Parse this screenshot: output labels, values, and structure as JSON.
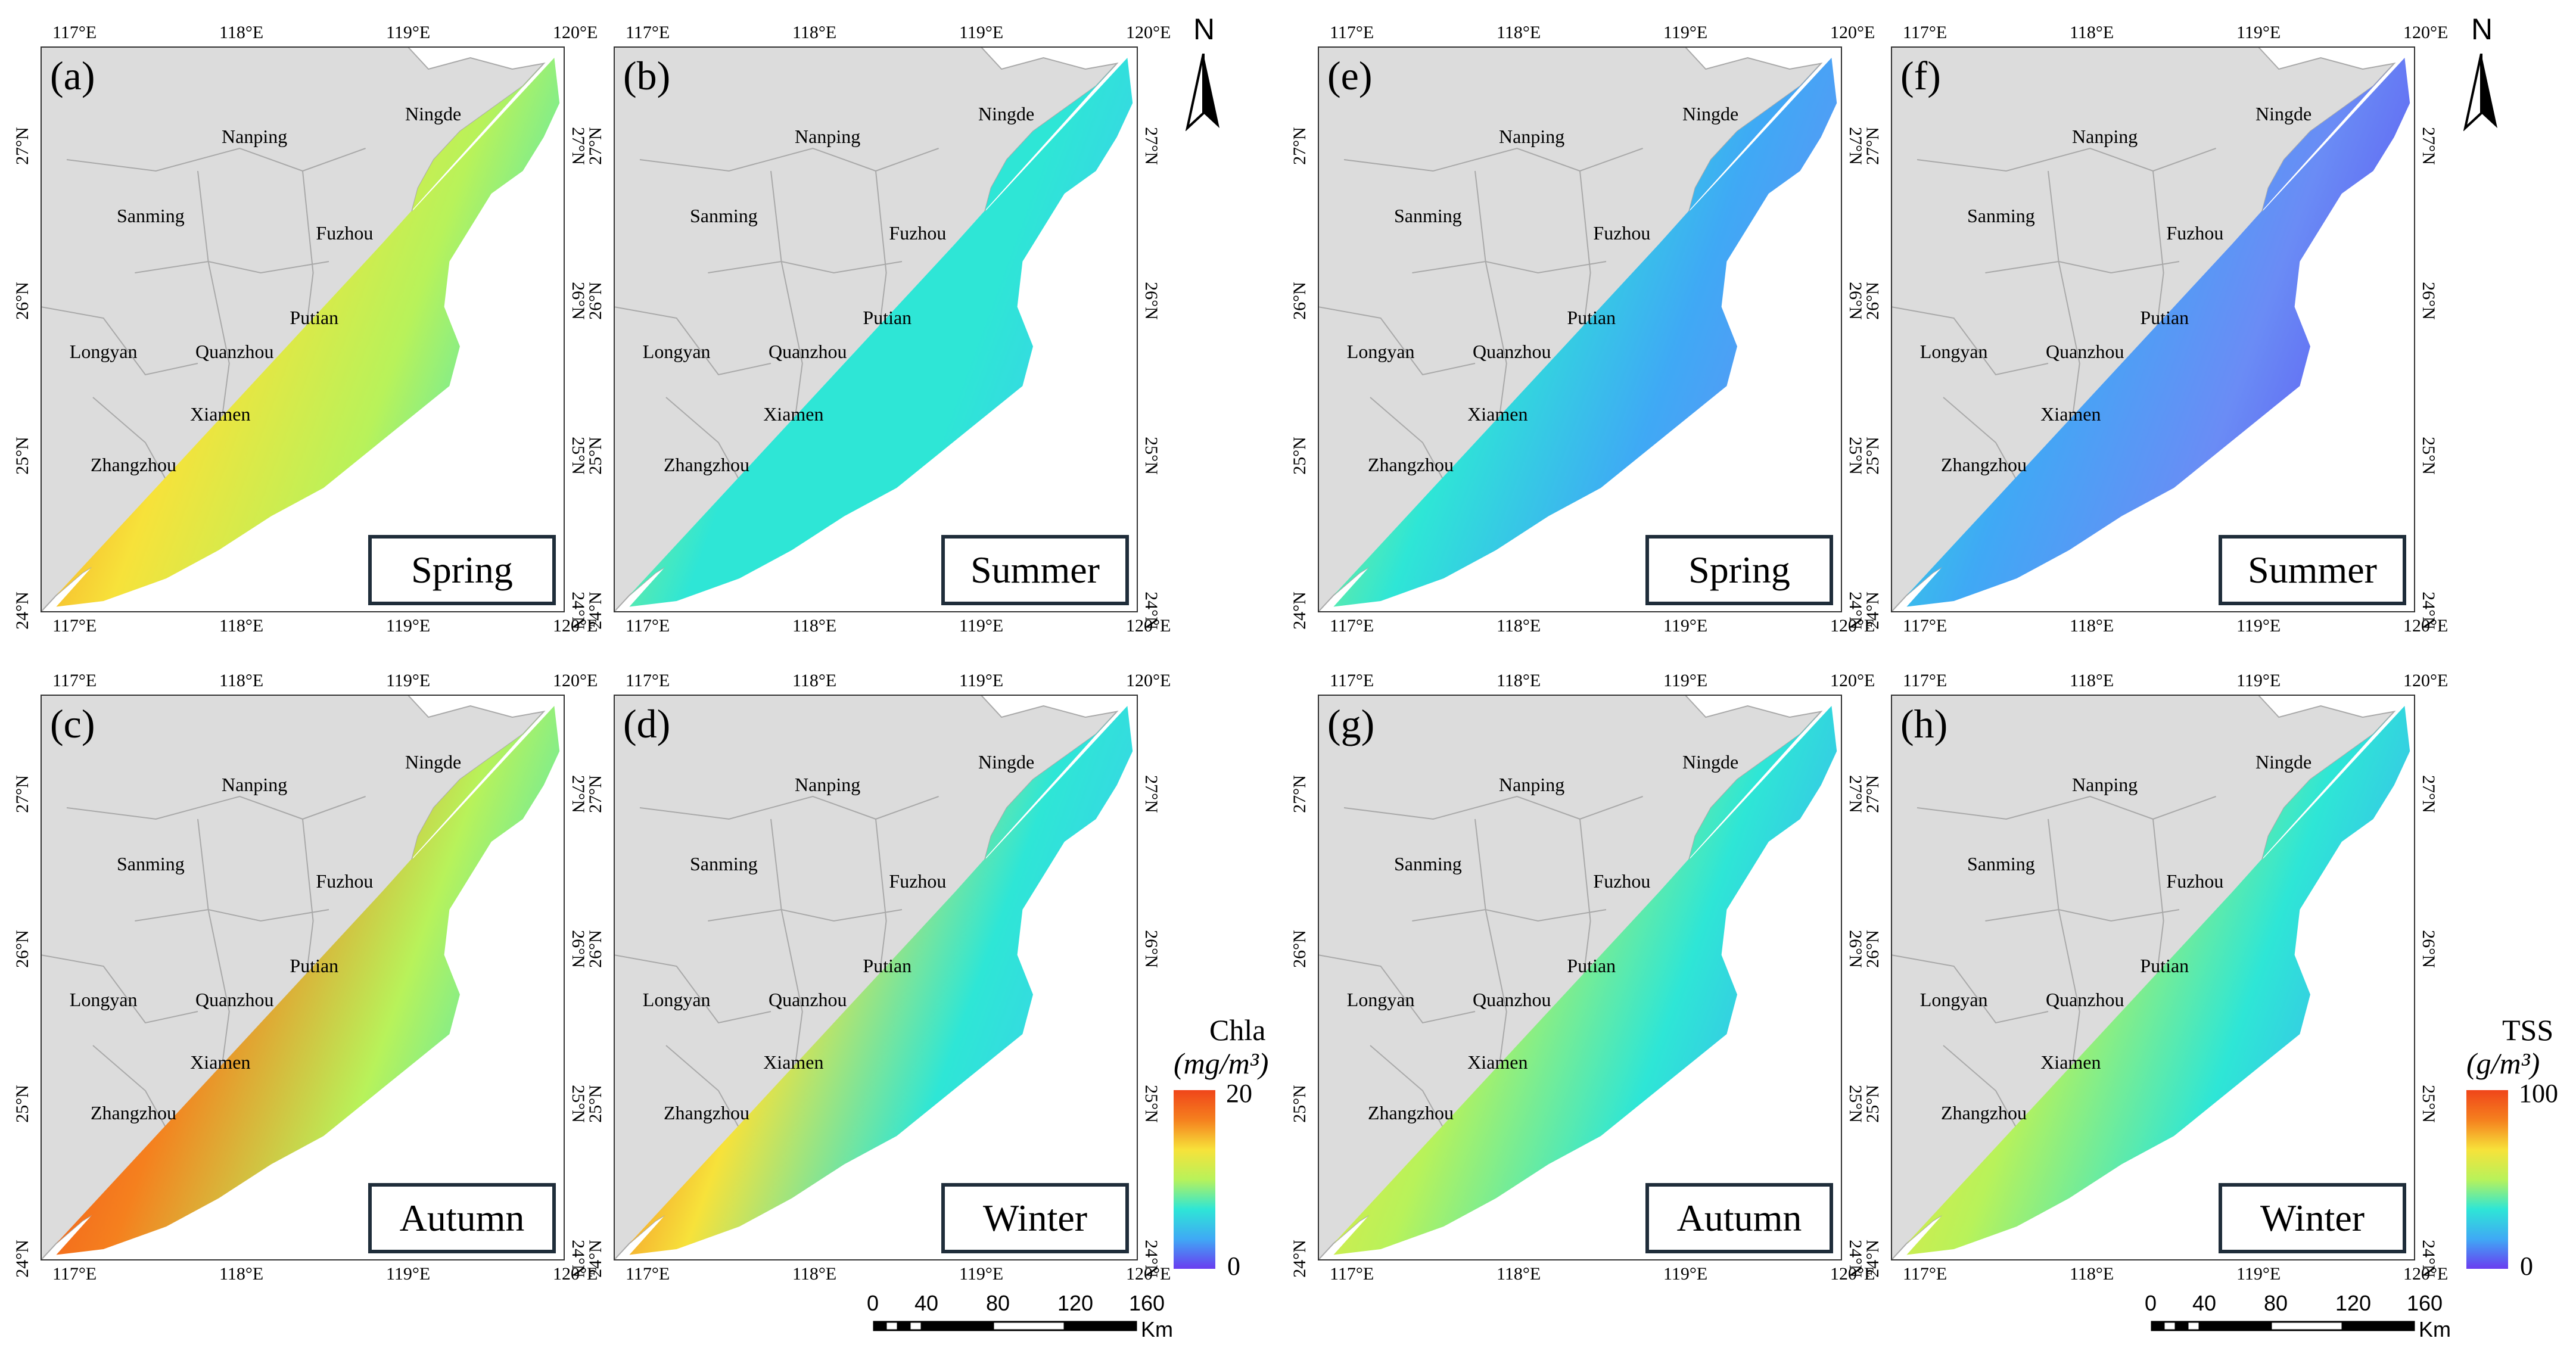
{
  "panels": [
    {
      "id": "a",
      "label": "(a)",
      "season": "Spring",
      "variable": "chla"
    },
    {
      "id": "b",
      "label": "(b)",
      "season": "Summer",
      "variable": "chla"
    },
    {
      "id": "c",
      "label": "(c)",
      "season": "Autumn",
      "variable": "chla"
    },
    {
      "id": "d",
      "label": "(d)",
      "season": "Winter",
      "variable": "chla"
    },
    {
      "id": "e",
      "label": "(e)",
      "season": "Spring",
      "variable": "tss"
    },
    {
      "id": "f",
      "label": "(f)",
      "season": "Summer",
      "variable": "tss"
    },
    {
      "id": "g",
      "label": "(g)",
      "season": "Autumn",
      "variable": "tss"
    },
    {
      "id": "h",
      "label": "(h)",
      "season": "Winter",
      "variable": "tss"
    }
  ],
  "lon_ticks": [
    "117°E",
    "118°E",
    "119°E",
    "120°E"
  ],
  "lat_ticks": [
    "27°N",
    "26°N",
    "25°N",
    "24°N"
  ],
  "cities": [
    "Nanping",
    "Ningde",
    "Sanming",
    "Fuzhou",
    "Putian",
    "Longyan",
    "Quanzhou",
    "Xiamen",
    "Zhangzhou"
  ],
  "north": "N",
  "legend_chla": {
    "title": "Chla",
    "unit": "(mg/m³)",
    "max": "20",
    "min": "0"
  },
  "legend_tss": {
    "title": "TSS",
    "unit": "(g/m³)",
    "max": "100",
    "min": "0"
  },
  "scale_bar": {
    "labels": [
      "0",
      "40",
      "80",
      "120",
      "160"
    ],
    "unit": "Km"
  },
  "colors": {
    "land": "#dcdcdc",
    "border": "#a9a9a9",
    "ramp": [
      "#6a3cf0",
      "#3fa9f5",
      "#2ee6d6",
      "#b8f25a",
      "#f7e23a",
      "#f5801e",
      "#f0451a"
    ]
  }
}
